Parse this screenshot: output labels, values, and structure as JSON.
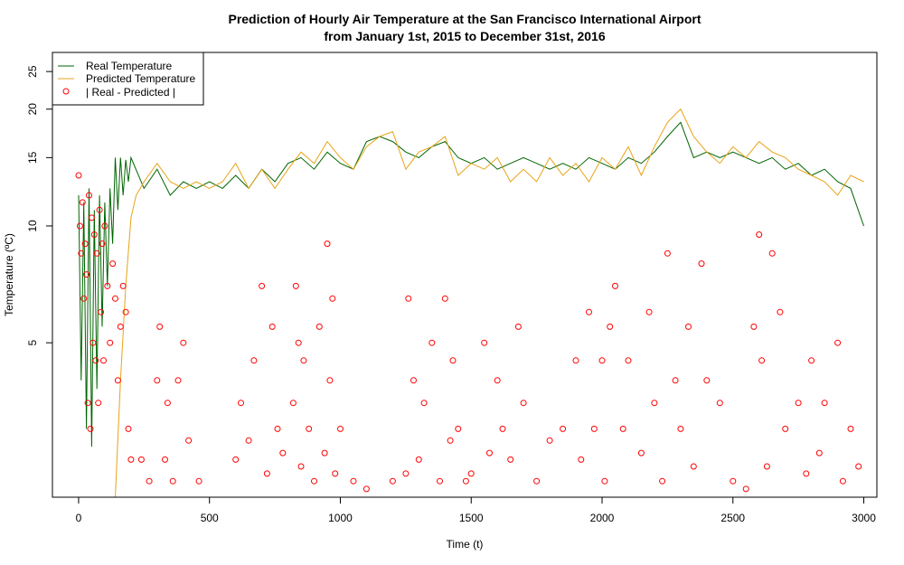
{
  "chart_data": {
    "type": "line",
    "title_line1": "Prediction of Hourly Air Temperature at the San Francisco International Airport",
    "title_line2": "from January 1st, 2015 to December 31st, 2016",
    "xlabel": "Time (t)",
    "ylabel": "Temperature (ºC)",
    "xlim": [
      -100,
      3050
    ],
    "ylim": [
      2.0,
      28.0
    ],
    "ylog": true,
    "x_ticks": [
      0,
      500,
      1000,
      1500,
      2000,
      2500,
      3000
    ],
    "x_tick_labels": [
      "0",
      "500",
      "1000",
      "1500",
      "2000",
      "2500",
      "3000"
    ],
    "y_ticks": [
      5,
      10,
      15,
      20,
      25
    ],
    "y_tick_labels": [
      "5",
      "10",
      "15",
      "20",
      "25"
    ],
    "legend_position": "top-left",
    "series": [
      {
        "name": "Real Temperature",
        "kind": "line",
        "color": "#006400",
        "x": [
          0,
          10,
          20,
          30,
          40,
          50,
          60,
          70,
          80,
          90,
          100,
          110,
          120,
          130,
          140,
          150,
          160,
          170,
          180,
          190,
          200,
          250,
          300,
          350,
          400,
          450,
          500,
          550,
          600,
          650,
          700,
          750,
          800,
          850,
          900,
          950,
          1000,
          1050,
          1100,
          1150,
          1200,
          1250,
          1300,
          1350,
          1400,
          1450,
          1500,
          1550,
          1600,
          1650,
          1700,
          1750,
          1800,
          1850,
          1900,
          1950,
          2000,
          2050,
          2100,
          2150,
          2200,
          2250,
          2300,
          2350,
          2400,
          2450,
          2500,
          2550,
          2600,
          2650,
          2700,
          2750,
          2800,
          2850,
          2900,
          2950,
          3000
        ],
        "values": [
          12.0,
          4.0,
          11.5,
          3.0,
          12.5,
          2.7,
          11.0,
          3.8,
          12.0,
          5.5,
          11.5,
          7.0,
          12.5,
          9.0,
          15.0,
          11.0,
          15.0,
          12.0,
          14.8,
          13.0,
          15.0,
          12.5,
          14.0,
          12.0,
          13.0,
          12.5,
          13.0,
          12.5,
          13.5,
          12.5,
          14.0,
          13.0,
          14.5,
          15.0,
          14.0,
          15.5,
          14.5,
          14.0,
          16.5,
          17.0,
          16.5,
          15.5,
          15.0,
          16.0,
          16.5,
          15.0,
          14.5,
          15.0,
          14.0,
          14.5,
          15.0,
          14.5,
          14.0,
          14.5,
          14.0,
          15.0,
          14.5,
          14.0,
          15.0,
          14.5,
          15.5,
          17.0,
          18.5,
          15.0,
          15.5,
          15.0,
          15.5,
          15.0,
          14.5,
          15.0,
          14.0,
          14.5,
          13.5,
          14.0,
          13.0,
          12.5,
          10.0
        ]
      },
      {
        "name": "Predicted Temperature",
        "kind": "line",
        "color": "#e8a317",
        "x": [
          140,
          160,
          180,
          200,
          220,
          250,
          300,
          350,
          400,
          450,
          500,
          550,
          600,
          650,
          700,
          750,
          800,
          850,
          900,
          950,
          1000,
          1050,
          1100,
          1150,
          1200,
          1250,
          1300,
          1350,
          1400,
          1450,
          1500,
          1550,
          1600,
          1650,
          1700,
          1750,
          1800,
          1850,
          1900,
          1950,
          2000,
          2050,
          2100,
          2150,
          2200,
          2250,
          2300,
          2350,
          2400,
          2450,
          2500,
          2550,
          2600,
          2650,
          2700,
          2750,
          2800,
          2850,
          2900,
          2950,
          3000
        ],
        "values": [
          2.0,
          4.0,
          7.0,
          10.5,
          12.0,
          13.0,
          14.5,
          13.0,
          12.5,
          13.0,
          12.5,
          13.0,
          14.5,
          12.5,
          14.0,
          12.5,
          14.0,
          15.5,
          14.5,
          16.5,
          15.0,
          14.0,
          16.0,
          17.0,
          17.5,
          14.0,
          15.5,
          16.0,
          17.0,
          13.5,
          14.5,
          14.0,
          15.0,
          13.0,
          14.0,
          13.0,
          15.0,
          13.5,
          14.5,
          13.0,
          15.0,
          14.0,
          16.0,
          13.5,
          16.0,
          18.5,
          20.0,
          17.0,
          15.5,
          14.5,
          16.0,
          15.0,
          16.5,
          15.5,
          15.0,
          14.0,
          13.5,
          13.0,
          12.0,
          13.5,
          13.0
        ]
      },
      {
        "name": "| Real - Predicted |",
        "kind": "points",
        "color": "#ff0000",
        "x": [
          0,
          5,
          10,
          15,
          20,
          25,
          30,
          35,
          40,
          45,
          50,
          55,
          60,
          65,
          70,
          75,
          80,
          85,
          90,
          95,
          100,
          110,
          120,
          130,
          140,
          150,
          160,
          170,
          180,
          190,
          200,
          240,
          270,
          300,
          310,
          330,
          340,
          360,
          380,
          400,
          420,
          460,
          600,
          620,
          650,
          670,
          700,
          720,
          740,
          760,
          780,
          820,
          830,
          840,
          850,
          860,
          880,
          900,
          920,
          940,
          950,
          960,
          970,
          980,
          1000,
          1050,
          1100,
          1200,
          1250,
          1260,
          1280,
          1300,
          1320,
          1350,
          1380,
          1400,
          1420,
          1430,
          1450,
          1480,
          1500,
          1550,
          1570,
          1600,
          1620,
          1650,
          1680,
          1700,
          1750,
          1800,
          1850,
          1900,
          1920,
          1950,
          1970,
          2000,
          2010,
          2030,
          2050,
          2080,
          2100,
          2150,
          2180,
          2200,
          2230,
          2250,
          2280,
          2300,
          2330,
          2350,
          2380,
          2400,
          2450,
          2500,
          2550,
          2580,
          2600,
          2610,
          2630,
          2650,
          2680,
          2700,
          2750,
          2780,
          2800,
          2830,
          2850,
          2900,
          2920,
          2950,
          2980
        ],
        "values": [
          13.5,
          10.0,
          8.5,
          11.5,
          6.5,
          9.0,
          7.5,
          3.5,
          12.0,
          3.0,
          10.5,
          5.0,
          9.5,
          4.5,
          8.5,
          3.5,
          11.0,
          6.0,
          9.0,
          4.5,
          10.0,
          7.0,
          5.0,
          8.0,
          6.5,
          4.0,
          5.5,
          7.0,
          6.0,
          3.0,
          2.5,
          2.5,
          2.2,
          4.0,
          5.5,
          2.5,
          3.5,
          2.2,
          4.0,
          5.0,
          2.8,
          2.2,
          2.5,
          3.5,
          2.8,
          4.5,
          7.0,
          2.3,
          5.5,
          3.0,
          2.6,
          3.5,
          7.0,
          5.0,
          2.4,
          4.5,
          3.0,
          2.2,
          5.5,
          2.6,
          9.0,
          4.0,
          6.5,
          2.3,
          3.0,
          2.2,
          2.1,
          2.2,
          2.3,
          6.5,
          4.0,
          2.5,
          3.5,
          5.0,
          2.2,
          6.5,
          2.8,
          4.5,
          3.0,
          2.2,
          2.3,
          5.0,
          2.6,
          4.0,
          3.0,
          2.5,
          5.5,
          3.5,
          2.2,
          2.8,
          3.0,
          4.5,
          2.5,
          6.0,
          3.0,
          4.5,
          2.2,
          5.5,
          7.0,
          3.0,
          4.5,
          2.6,
          6.0,
          3.5,
          2.2,
          8.5,
          4.0,
          3.0,
          5.5,
          2.4,
          8.0,
          4.0,
          3.5,
          2.2,
          2.1,
          5.5,
          9.5,
          4.5,
          2.4,
          8.5,
          6.0,
          3.0,
          3.5,
          2.3,
          4.5,
          2.6,
          3.5,
          5.0,
          2.2,
          3.0,
          2.4
        ]
      }
    ]
  }
}
